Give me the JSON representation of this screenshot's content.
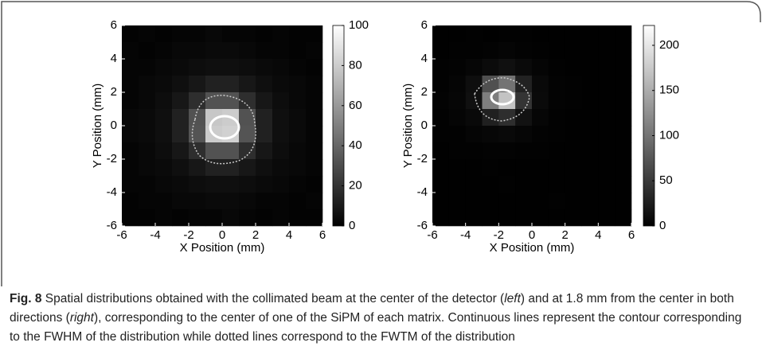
{
  "chart_data": [
    {
      "type": "heatmap",
      "xlabel": "X Position (mm)",
      "ylabel": "Y Position (mm)",
      "xlim": [
        -6,
        6
      ],
      "ylim": [
        -6,
        6
      ],
      "xticks": [
        -6,
        -4,
        -2,
        0,
        2,
        4,
        6
      ],
      "yticks": [
        -6,
        -4,
        -2,
        0,
        2,
        4,
        6
      ],
      "x": [
        -5.5,
        -4.5,
        -3.5,
        -2.5,
        -1.5,
        -0.5,
        0.5,
        1.5,
        2.5,
        3.5,
        4.5,
        5.5
      ],
      "y": [
        5.5,
        4.5,
        3.5,
        2.5,
        1.5,
        0.5,
        -0.5,
        -1.5,
        -2.5,
        -3.5,
        -4.5,
        -5.5
      ],
      "z": [
        [
          1,
          2,
          1,
          2,
          2,
          3,
          2,
          2,
          1,
          2,
          1,
          1
        ],
        [
          2,
          1,
          2,
          3,
          3,
          4,
          4,
          3,
          2,
          2,
          1,
          2
        ],
        [
          2,
          2,
          3,
          4,
          5,
          6,
          6,
          5,
          4,
          3,
          2,
          1
        ],
        [
          2,
          3,
          4,
          6,
          9,
          13,
          13,
          9,
          6,
          4,
          3,
          2
        ],
        [
          2,
          3,
          5,
          9,
          18,
          32,
          32,
          18,
          9,
          5,
          3,
          2
        ],
        [
          3,
          4,
          6,
          13,
          32,
          78,
          80,
          32,
          13,
          6,
          4,
          2
        ],
        [
          3,
          4,
          6,
          13,
          33,
          80,
          82,
          33,
          13,
          6,
          4,
          2
        ],
        [
          2,
          3,
          5,
          9,
          18,
          32,
          32,
          18,
          9,
          5,
          3,
          2
        ],
        [
          2,
          3,
          4,
          6,
          9,
          13,
          13,
          9,
          6,
          4,
          3,
          2
        ],
        [
          2,
          2,
          3,
          4,
          5,
          6,
          6,
          5,
          4,
          3,
          2,
          1
        ],
        [
          1,
          2,
          2,
          3,
          3,
          4,
          4,
          3,
          2,
          2,
          1,
          2
        ],
        [
          1,
          1,
          2,
          1,
          2,
          2,
          3,
          2,
          1,
          2,
          1,
          1
        ]
      ],
      "zlim": [
        0,
        100
      ],
      "zticks": [
        0,
        20,
        40,
        60,
        80,
        100
      ],
      "colormap": "gray"
    },
    {
      "type": "heatmap",
      "xlabel": "X Position (mm)",
      "ylabel": "Y Position (mm)",
      "xlim": [
        -6,
        6
      ],
      "ylim": [
        -6,
        6
      ],
      "xticks": [
        -6,
        -4,
        -2,
        0,
        2,
        4,
        6
      ],
      "yticks": [
        -6,
        -4,
        -2,
        0,
        2,
        4,
        6
      ],
      "x": [
        -5.5,
        -4.5,
        -3.5,
        -2.5,
        -1.5,
        -0.5,
        0.5,
        1.5,
        2.5,
        3.5,
        4.5,
        5.5
      ],
      "y": [
        5.5,
        4.5,
        3.5,
        2.5,
        1.5,
        0.5,
        -0.5,
        -1.5,
        -2.5,
        -3.5,
        -4.5,
        -5.5
      ],
      "z": [
        [
          1,
          1,
          2,
          1,
          2,
          2,
          1,
          1,
          1,
          1,
          1,
          1
        ],
        [
          1,
          2,
          2,
          3,
          4,
          3,
          2,
          1,
          1,
          1,
          1,
          1
        ],
        [
          2,
          3,
          5,
          10,
          14,
          9,
          4,
          2,
          1,
          1,
          1,
          1
        ],
        [
          2,
          4,
          12,
          70,
          100,
          30,
          8,
          3,
          2,
          1,
          1,
          1
        ],
        [
          3,
          5,
          14,
          110,
          170,
          45,
          9,
          3,
          2,
          1,
          1,
          1
        ],
        [
          2,
          4,
          8,
          28,
          40,
          16,
          5,
          2,
          1,
          1,
          1,
          1
        ],
        [
          2,
          2,
          4,
          6,
          8,
          5,
          3,
          2,
          1,
          1,
          1,
          1
        ],
        [
          1,
          2,
          2,
          3,
          3,
          2,
          2,
          1,
          1,
          1,
          1,
          1
        ],
        [
          1,
          1,
          1,
          2,
          1,
          1,
          1,
          1,
          1,
          1,
          1,
          1
        ],
        [
          1,
          1,
          1,
          1,
          2,
          1,
          1,
          1,
          1,
          1,
          1,
          1
        ],
        [
          1,
          1,
          1,
          1,
          1,
          1,
          1,
          2,
          1,
          1,
          1,
          1
        ],
        [
          1,
          1,
          1,
          1,
          1,
          1,
          1,
          1,
          1,
          1,
          1,
          1
        ]
      ],
      "zlim": [
        0,
        222
      ],
      "zticks": [
        0,
        50,
        100,
        150,
        200
      ],
      "colormap": "gray"
    }
  ],
  "caption": {
    "label": "Fig. 8",
    "parts": [
      " Spatial distributions obtained with the collimated beam at the center of the detector (",
      "left",
      ") and at 1.8 mm from the center in both directions (",
      "right",
      "), corresponding to the center of one of the SiPM of each matrix. Continuous lines represent the contour corresponding to the FWHM of the distribution while dotted lines correspond to the FWTM of the distribution"
    ]
  }
}
